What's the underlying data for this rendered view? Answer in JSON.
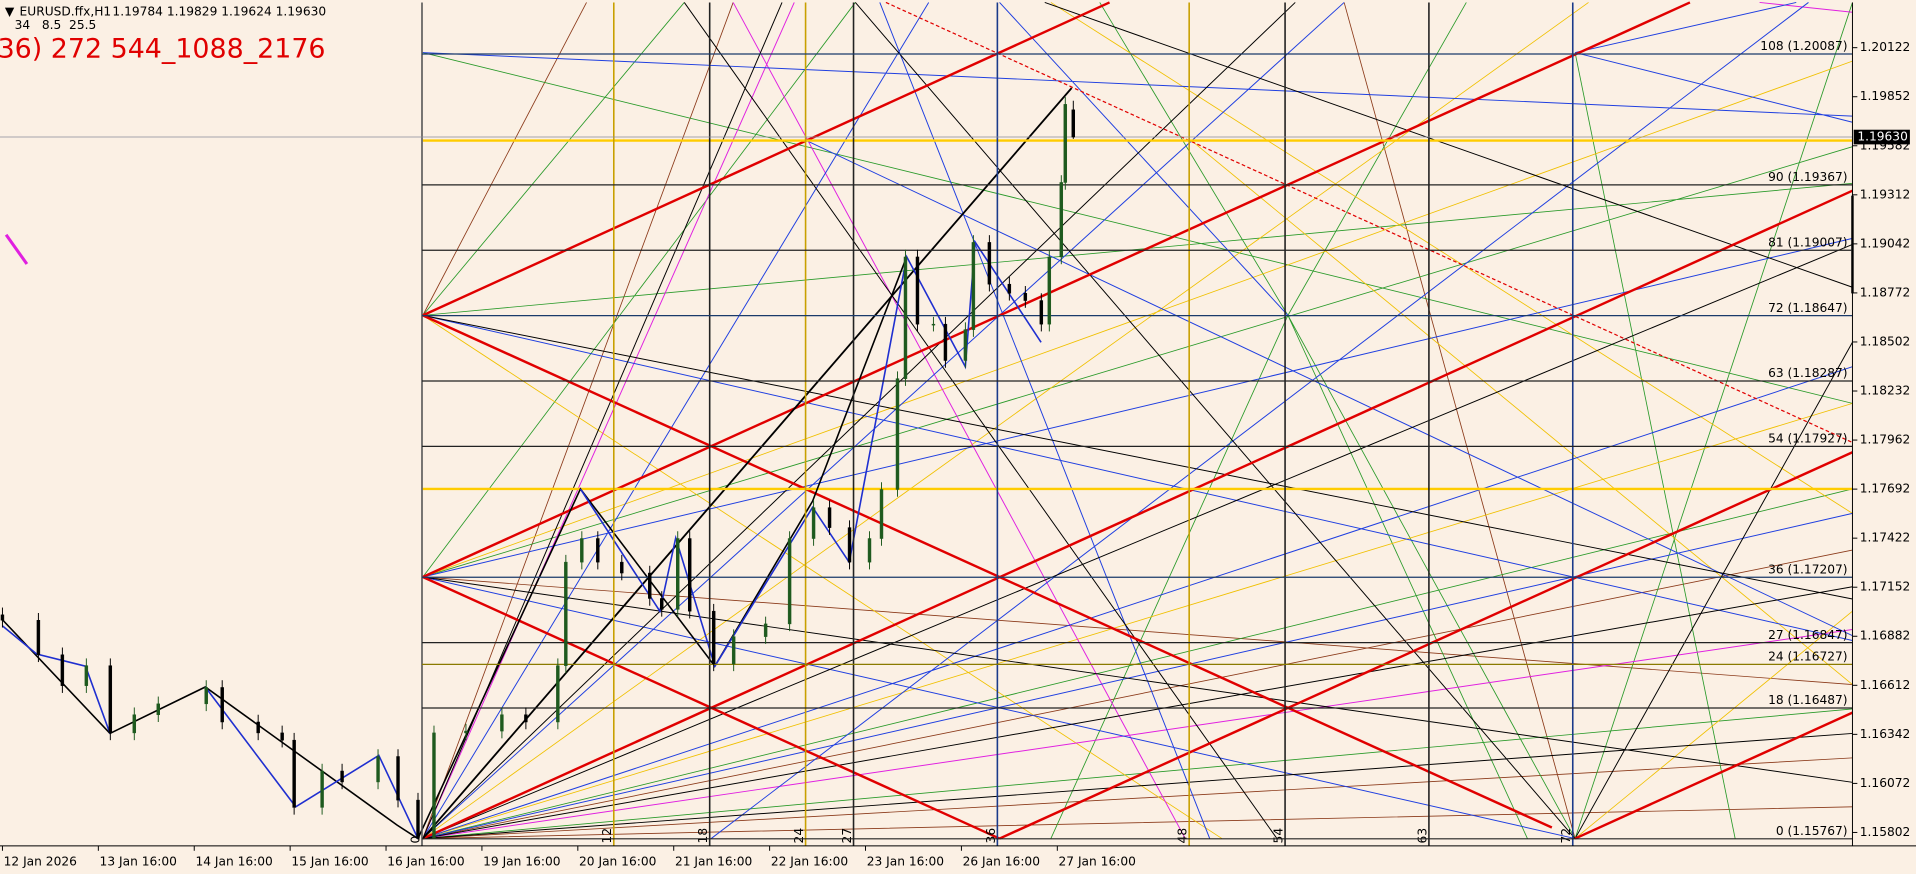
{
  "header": {
    "symbol": "EURUSD.ffx,H1",
    "ohlc": "1.19784 1.19829 1.19624 1.19630",
    "params": "34   8.5  25.5",
    "note": "36) 272 544_1088_2176"
  },
  "chart_data": {
    "type": "candlestick",
    "x": [
      0,
      9,
      15,
      21,
      27,
      33,
      39,
      51,
      55,
      64,
      70,
      73,
      80,
      85,
      94,
      99,
      104,
      108,
      116,
      125,
      131,
      139,
      141,
      145,
      149,
      155,
      162,
      165,
      169,
      172,
      178,
      183,
      191,
      197,
      203,
      207,
      212,
      217,
      220,
      224,
      226,
      229,
      233,
      236,
      241,
      243,
      247,
      252,
      256,
      260,
      262,
      265,
      266,
      268
    ],
    "open": [
      1.17,
      1.1697,
      1.1678,
      1.1661,
      1.1672,
      1.1635,
      1.1645,
      1.1651,
      1.166,
      1.1641,
      1.1635,
      1.1631,
      1.1594,
      1.1614,
      1.1608,
      1.1622,
      1.1598,
      1.1577,
      1.1635,
      1.1636,
      1.1645,
      1.1641,
      1.1672,
      1.1729,
      1.1742,
      1.1729,
      1.1723,
      1.1709,
      1.1703,
      1.1742,
      1.1702,
      1.1673,
      1.1688,
      1.1695,
      1.1742,
      1.1759,
      1.1748,
      1.1729,
      1.1742,
      1.1769,
      1.183,
      1.1897,
      1.186,
      1.186,
      1.184,
      1.1857,
      1.1905,
      1.1882,
      1.1877,
      1.1873,
      1.186,
      1.1897,
      1.1938,
      1.1978
    ],
    "high": [
      1.1704,
      1.1701,
      1.1682,
      1.1676,
      1.1676,
      1.1649,
      1.1655,
      1.1664,
      1.1664,
      1.1645,
      1.1639,
      1.1635,
      1.1618,
      1.1618,
      1.1626,
      1.1626,
      1.1602,
      1.1639,
      1.164,
      1.1649,
      1.1649,
      1.1676,
      1.1733,
      1.1746,
      1.1746,
      1.1733,
      1.1727,
      1.1713,
      1.1746,
      1.1746,
      1.1706,
      1.1692,
      1.1699,
      1.1746,
      1.1763,
      1.1763,
      1.1752,
      1.1746,
      1.1773,
      1.1834,
      1.1901,
      1.1901,
      1.1864,
      1.1864,
      1.1861,
      1.1909,
      1.1909,
      1.1886,
      1.1881,
      1.1877,
      1.1901,
      1.1942,
      1.1985,
      1.1983
    ],
    "low": [
      1.1693,
      1.1674,
      1.1657,
      1.1657,
      1.1631,
      1.1631,
      1.1641,
      1.1647,
      1.1637,
      1.1631,
      1.1627,
      1.159,
      1.159,
      1.1604,
      1.1604,
      1.1594,
      1.1577,
      1.1577,
      1.1631,
      1.1632,
      1.1637,
      1.1637,
      1.1668,
      1.1725,
      1.1725,
      1.1719,
      1.1705,
      1.1699,
      1.1699,
      1.1698,
      1.1669,
      1.1669,
      1.1684,
      1.1691,
      1.1738,
      1.1744,
      1.1725,
      1.1725,
      1.1738,
      1.1765,
      1.1826,
      1.1856,
      1.1856,
      1.1836,
      1.1836,
      1.1853,
      1.1878,
      1.1873,
      1.1869,
      1.1856,
      1.1856,
      1.1893,
      1.1934,
      1.1962
    ],
    "close": [
      1.1697,
      1.1678,
      1.1661,
      1.1672,
      1.1635,
      1.1645,
      1.1651,
      1.166,
      1.1641,
      1.1635,
      1.1631,
      1.1594,
      1.1614,
      1.1608,
      1.1622,
      1.1598,
      1.1577,
      1.1635,
      1.1636,
      1.1645,
      1.1641,
      1.1672,
      1.1729,
      1.1742,
      1.1729,
      1.1723,
      1.1709,
      1.1703,
      1.1742,
      1.1702,
      1.1673,
      1.1688,
      1.1695,
      1.1742,
      1.1759,
      1.1748,
      1.1729,
      1.1742,
      1.1769,
      1.183,
      1.1897,
      1.186,
      1.186,
      1.184,
      1.1857,
      1.1905,
      1.1882,
      1.1877,
      1.1873,
      1.186,
      1.1897,
      1.1938,
      1.1981,
      1.1963
    ],
    "up_color": "#1e5a1e",
    "down_color": "#000000",
    "xlim": [
      0,
      463
    ],
    "ylim": [
      1.15728,
      1.20371
    ],
    "xticks": [
      {
        "value": 0,
        "label": "12 Jan 2026"
      },
      {
        "value": 24,
        "label": "13 Jan 16:00"
      },
      {
        "value": 48,
        "label": "14 Jan 16:00"
      },
      {
        "value": 72,
        "label": "15 Jan 16:00"
      },
      {
        "value": 96,
        "label": "16 Jan 16:00"
      },
      {
        "value": 120,
        "label": "19 Jan 16:00"
      },
      {
        "value": 144,
        "label": "20 Jan 16:00"
      },
      {
        "value": 168,
        "label": "21 Jan 16:00"
      },
      {
        "value": 192,
        "label": "22 Jan 16:00"
      },
      {
        "value": 216,
        "label": "23 Jan 16:00"
      },
      {
        "value": 240,
        "label": "26 Jan 16:00"
      },
      {
        "value": 264,
        "label": "27 Jan 16:00"
      }
    ],
    "yticks": [
      1.20122,
      1.19852,
      1.19582,
      1.19312,
      1.19042,
      1.18772,
      1.18502,
      1.18232,
      1.17962,
      1.17692,
      1.17422,
      1.17152,
      1.16882,
      1.16612,
      1.16342,
      1.16072,
      1.15802
    ],
    "current_price": {
      "value": 1.1963,
      "label": "1.19630"
    },
    "gann_levels": [
      {
        "value": 1.20087,
        "label": "108 (1.20087)"
      },
      {
        "value": 1.19367,
        "label": "90 (1.19367)"
      },
      {
        "value": 1.19007,
        "label": "81 (1.19007)"
      },
      {
        "value": 1.18647,
        "label": "72 (1.18647)"
      },
      {
        "value": 1.18287,
        "label": "63 (1.18287)"
      },
      {
        "value": 1.17927,
        "label": "54 (1.17927)"
      },
      {
        "value": 1.17207,
        "label": "36 (1.17207)"
      },
      {
        "value": 1.16847,
        "label": "27 (1.16847)"
      },
      {
        "value": 1.16727,
        "label": "24 (1.16727)"
      },
      {
        "value": 1.16487,
        "label": "18 (1.16487)"
      },
      {
        "value": 1.15767,
        "label": "0 (1.15767)"
      }
    ],
    "gann_level_colors": [
      "#1a3a6a",
      "#222222",
      "#222222",
      "#1a3a6a",
      "#222222",
      "#222222",
      "#1a3a6a",
      "#222222",
      "#8a7a00",
      "#222222",
      "#222222"
    ],
    "gann_times": [
      {
        "value": 105,
        "label": "0"
      },
      {
        "value": 153,
        "label": "12"
      },
      {
        "value": 177,
        "label": "18"
      },
      {
        "value": 201,
        "label": "24"
      },
      {
        "value": 213,
        "label": "27"
      },
      {
        "value": 249,
        "label": "36"
      },
      {
        "value": 297,
        "label": "48"
      },
      {
        "value": 321,
        "label": "54"
      },
      {
        "value": 357,
        "label": "63"
      },
      {
        "value": 393,
        "label": "72"
      }
    ],
    "gann_time_colors": [
      "#555555",
      "#c8a000",
      "#222222",
      "#c8a000",
      "#222222",
      "#1a3a8a",
      "#c8a000",
      "#222222",
      "#222222",
      "#1a3a8a"
    ]
  }
}
